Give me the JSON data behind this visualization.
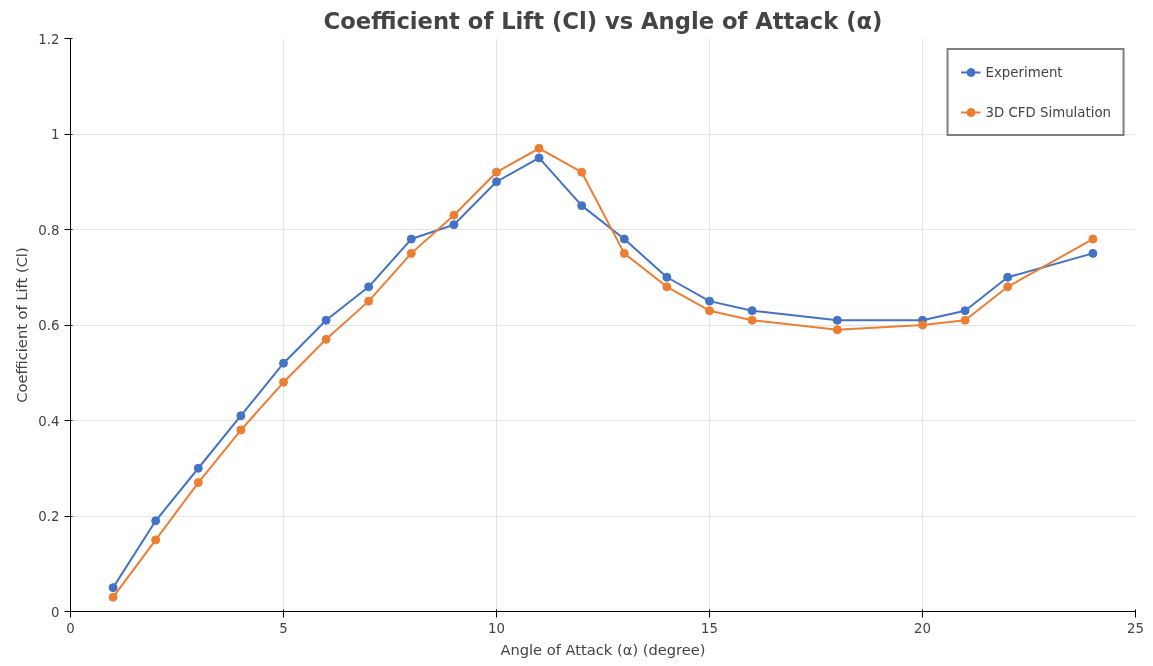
{
  "chart_data": {
    "type": "line",
    "title": "Coefficient of Lift (Cl) vs Angle of Attack (α)",
    "xlabel": "Angle of Attack (α) (degree)",
    "ylabel": "Coefficient of Lift (Cl)",
    "x": [
      1,
      2,
      3,
      4,
      5,
      6,
      7,
      8,
      9,
      10,
      11,
      12,
      13,
      14,
      15,
      16,
      18,
      20,
      21,
      22,
      24
    ],
    "series": [
      {
        "name": "Experiment",
        "color": "#4472c4",
        "values": [
          0.05,
          0.19,
          0.3,
          0.41,
          0.52,
          0.61,
          0.68,
          0.78,
          0.81,
          0.9,
          0.95,
          0.85,
          0.78,
          0.7,
          0.65,
          0.63,
          0.61,
          0.61,
          0.63,
          0.7,
          0.75
        ]
      },
      {
        "name": "3D CFD Simulation",
        "color": "#ed7d31",
        "values": [
          0.03,
          0.15,
          0.27,
          0.38,
          0.48,
          0.57,
          0.65,
          0.75,
          0.83,
          0.92,
          0.97,
          0.92,
          0.75,
          0.68,
          0.63,
          0.61,
          0.59,
          0.6,
          0.61,
          0.68,
          0.78
        ]
      }
    ],
    "xlim": [
      0,
      25
    ],
    "xticks": [
      0,
      5,
      10,
      15,
      20,
      25
    ],
    "ylim": [
      0,
      1.2
    ],
    "yticks": [
      0,
      {
        "value": 0.2,
        "label": "0.2"
      },
      {
        "value": 0.4,
        "label": "0.4"
      },
      {
        "value": 0.6,
        "label": "0.6"
      },
      {
        "value": 0.8,
        "label": "0.8"
      },
      1,
      {
        "value": 1.2,
        "label": "1.2"
      }
    ],
    "grid": true,
    "legend": "top right",
    "marker": "circle",
    "line_style": "solid"
  }
}
